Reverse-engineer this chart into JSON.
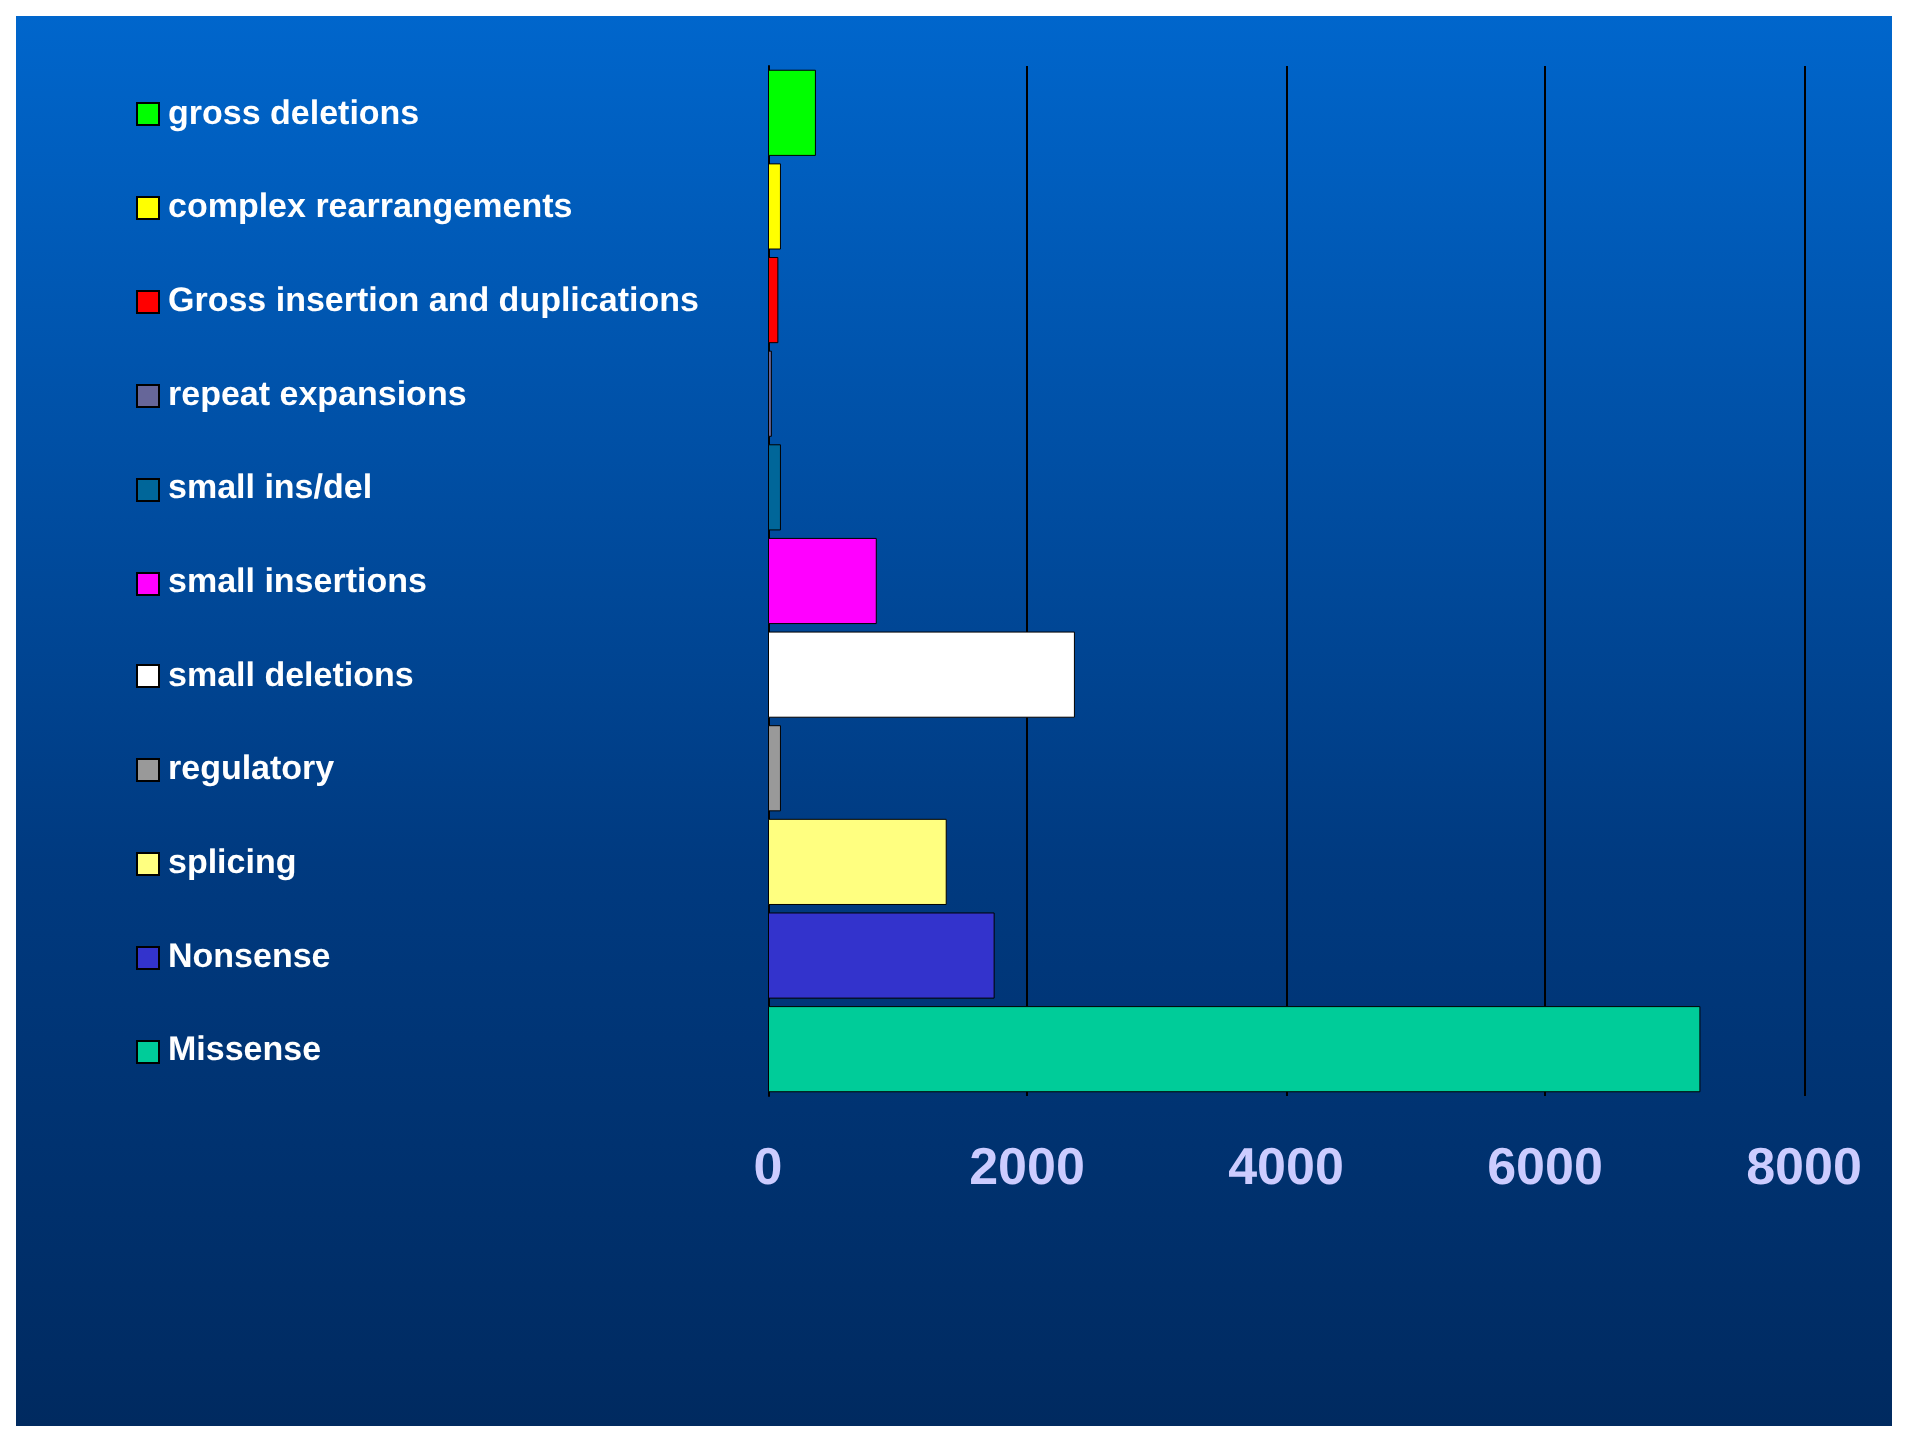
{
  "chart_data": {
    "type": "bar",
    "orientation": "horizontal",
    "categories": [
      "gross deletions",
      "complex rearrangements",
      "Gross insertion and duplications",
      "repeat expansions",
      "small ins/del",
      "small insertions",
      "small deletions",
      "regulatory",
      "splicing",
      "Nonsense",
      "Missense"
    ],
    "values": [
      370,
      100,
      80,
      30,
      100,
      840,
      2370,
      100,
      1380,
      1750,
      7200
    ],
    "colors": [
      "#00ff00",
      "#ffff00",
      "#ff0000",
      "#666699",
      "#006699",
      "#ff00ff",
      "#ffffff",
      "#999999",
      "#ffff80",
      "#3333cc",
      "#00cc99"
    ],
    "xlim": [
      0,
      8000
    ],
    "xticks": [
      0,
      2000,
      4000,
      6000,
      8000
    ],
    "grid": "x"
  }
}
